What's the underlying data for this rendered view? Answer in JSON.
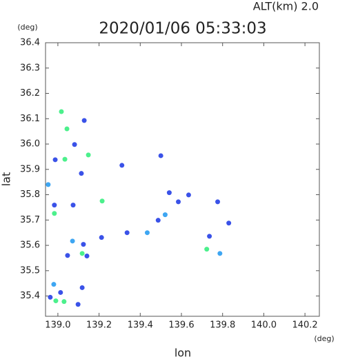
{
  "chart_data": {
    "type": "scatter",
    "title": "2020/01/06 05:33:03",
    "subtitle": "ALT(km)  2.0",
    "x_label": "lon",
    "y_label": "lat",
    "x_unit": "(deg)",
    "y_unit": "(deg)",
    "xlim": [
      138.94,
      140.27
    ],
    "ylim": [
      35.32,
      36.4
    ],
    "xticks": [
      {
        "value": 139,
        "label": "139.0"
      },
      139.2,
      139.4,
      139.6,
      139.8,
      {
        "value": 140,
        "label": "140.0"
      },
      140.2
    ],
    "yticks": [
      {
        "value": 35.4,
        "label": "35.4"
      },
      35.5,
      35.6,
      35.7,
      35.8,
      35.9,
      {
        "value": 36,
        "label": "36.0"
      },
      36.1,
      36.2,
      36.3,
      36.4
    ],
    "series": [
      {
        "color": "#3a52e8",
        "x": [
          139.081,
          138.987,
          139.128,
          139.114,
          138.983,
          139.074,
          139.311,
          139.541,
          139.585,
          139.635,
          139.487,
          139.776,
          139.83,
          139.736,
          139.336,
          139.124,
          139.141,
          139.047,
          138.963,
          139.013,
          139.118,
          139.098,
          139.212,
          139.5
        ],
        "values": [
          35.998,
          35.938,
          36.093,
          35.884,
          35.759,
          35.759,
          35.916,
          35.808,
          35.772,
          35.799,
          35.699,
          35.772,
          35.688,
          35.636,
          35.65,
          35.604,
          35.558,
          35.56,
          35.395,
          35.414,
          35.433,
          35.367,
          35.631,
          35.954
        ]
      },
      {
        "color": "#3ea6f2",
        "x": [
          138.953,
          139.521,
          139.787,
          139.434,
          139.071,
          138.98
        ],
        "values": [
          35.84,
          35.721,
          35.568,
          35.65,
          35.617,
          35.446
        ]
      },
      {
        "color": "#4cf08c",
        "x": [
          139.017,
          139.044,
          139.034,
          139.148,
          138.983,
          139.215,
          139.723,
          139.118,
          138.99,
          139.03
        ],
        "values": [
          36.128,
          36.06,
          35.94,
          35.957,
          35.726,
          35.775,
          35.585,
          35.568,
          35.381,
          35.378
        ]
      }
    ]
  }
}
